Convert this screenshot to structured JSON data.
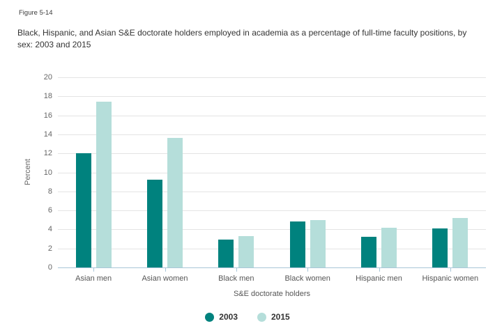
{
  "figure_label": "Figure 5-14",
  "title": "Black, Hispanic, and Asian S&E doctorate holders employed in academia as a percentage of full-time faculty positions, by sex: 2003 and 2015",
  "colors": {
    "series_2003": "#00827E",
    "series_2015": "#B5DEDA",
    "axis_line": "#A9C6D8",
    "gridline": "#E4E4E4",
    "tick_label": "#666666",
    "category_label": "#555555",
    "title_text": "#333333"
  },
  "chart_data": {
    "type": "bar",
    "title": "Black, Hispanic, and Asian S&E doctorate holders employed in academia as a percentage of full-time faculty positions, by sex: 2003 and 2015",
    "categories": [
      "Asian men",
      "Asian women",
      "Black men",
      "Black women",
      "Hispanic men",
      "Hispanic women"
    ],
    "series": [
      {
        "name": "2003",
        "color": "#00827E",
        "values": [
          12.0,
          9.2,
          2.9,
          4.8,
          3.2,
          4.1
        ]
      },
      {
        "name": "2015",
        "color": "#B5DEDA",
        "values": [
          17.4,
          13.6,
          3.3,
          5.0,
          4.2,
          5.2
        ]
      }
    ],
    "xlabel": "S&E doctorate holders",
    "ylabel": "Percent",
    "ylim": [
      0,
      20
    ],
    "yticks": [
      0,
      2,
      4,
      6,
      8,
      10,
      12,
      14,
      16,
      18,
      20
    ],
    "grid": true,
    "legend_position": "bottom"
  }
}
